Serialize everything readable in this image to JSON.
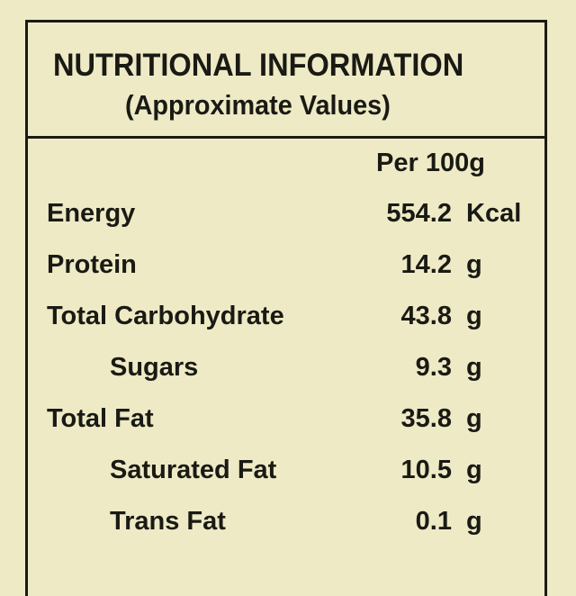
{
  "header": {
    "title": "NUTRITIONAL INFORMATION",
    "subtitle": "(Approximate Values)"
  },
  "table": {
    "column": "Per 100g",
    "rows": [
      {
        "name": "Energy",
        "value": 554.2,
        "unit": "Kcal"
      },
      {
        "name": "Protein",
        "value": 14.2,
        "unit": "g"
      },
      {
        "name": "Total Carbohydrate",
        "value": 43.8,
        "unit": "g",
        "sub": [
          {
            "name": "Sugars",
            "value": 9.3,
            "unit": "g"
          }
        ]
      },
      {
        "name": "Total Fat",
        "value": 35.8,
        "unit": "g",
        "sub": [
          {
            "name": "Saturated Fat",
            "value": 10.5,
            "unit": "g"
          },
          {
            "name": "Trans Fat",
            "value": 0.1,
            "unit": "g"
          }
        ]
      }
    ]
  }
}
